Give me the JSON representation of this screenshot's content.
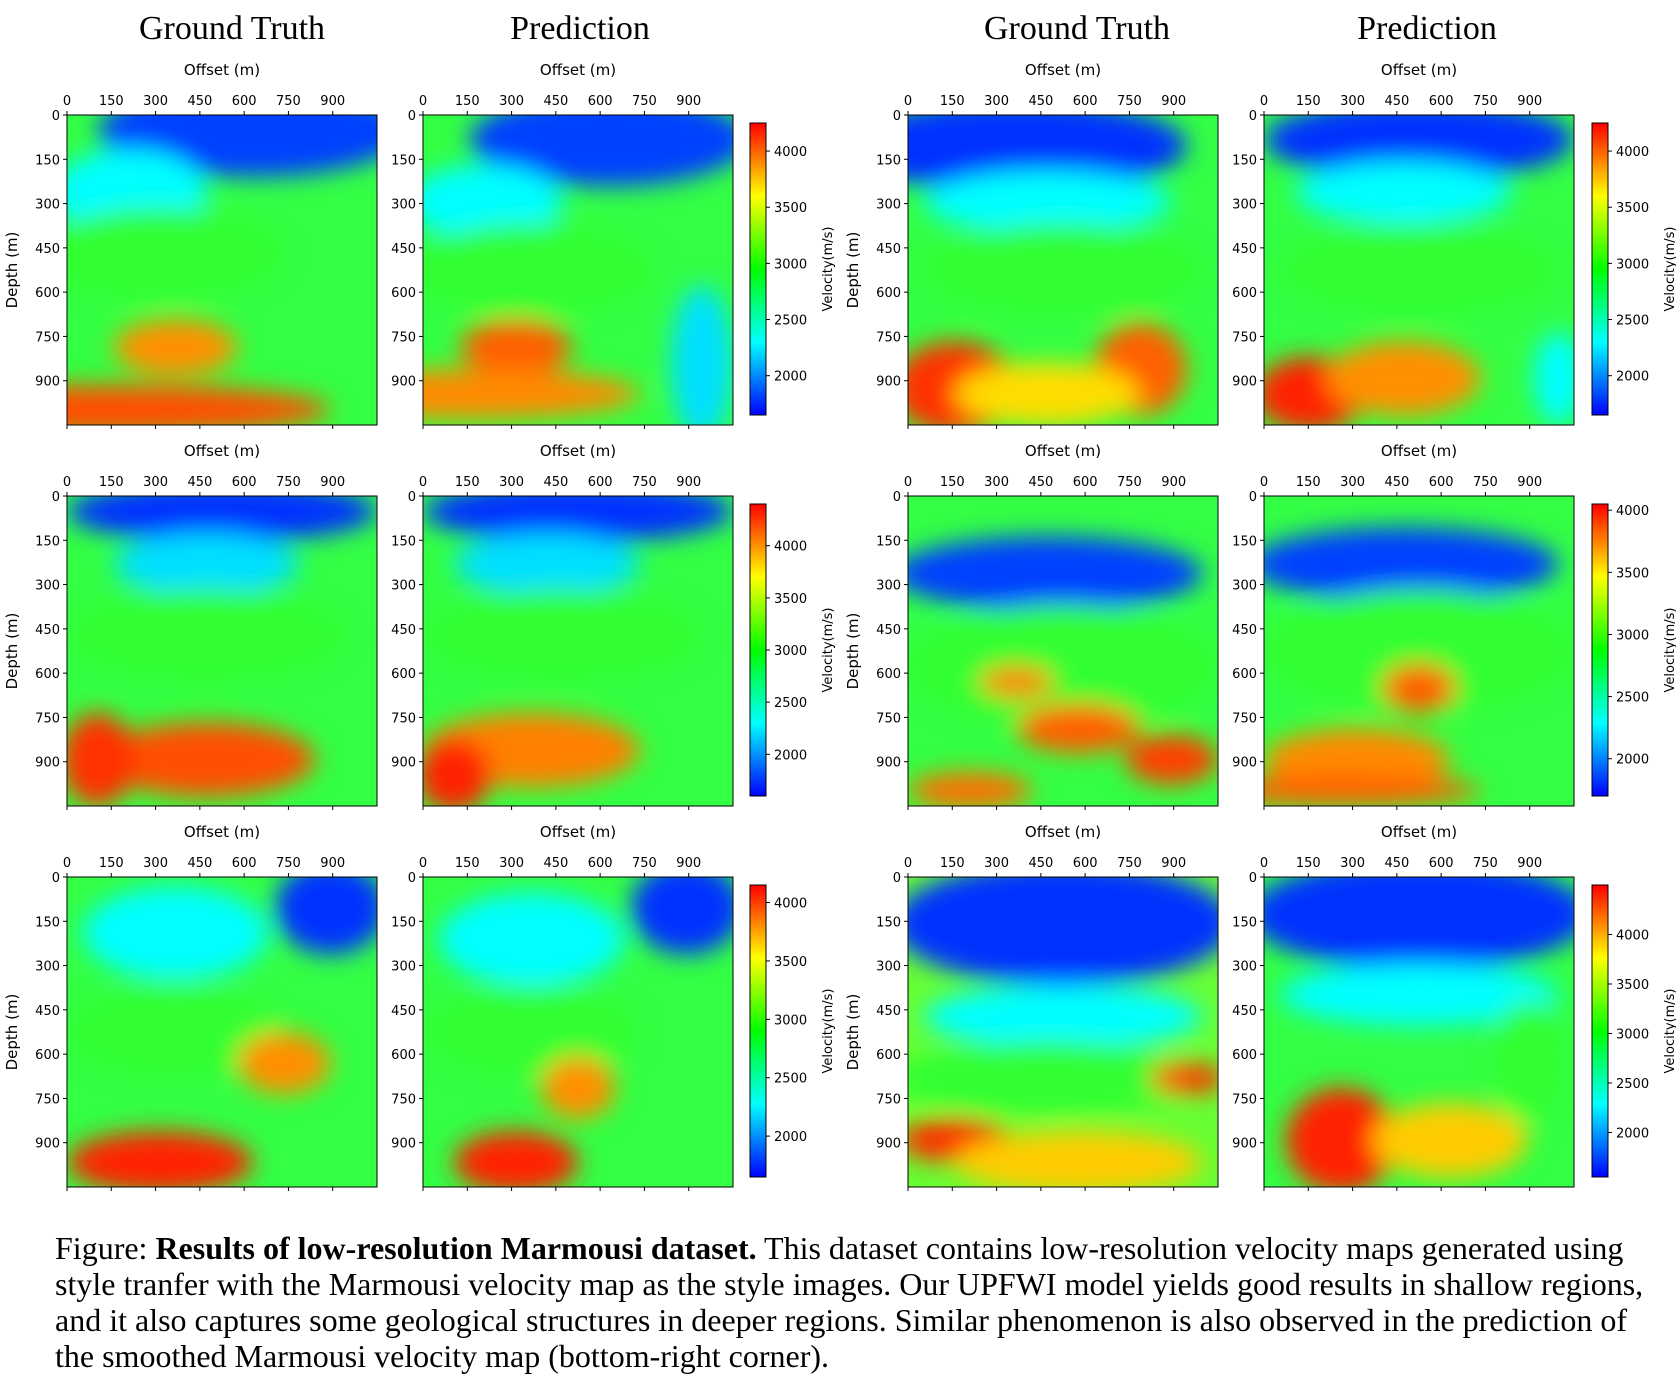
{
  "column_titles": [
    "Ground Truth",
    "Prediction",
    "Ground Truth",
    "Prediction"
  ],
  "caption": {
    "prefix": "Figure: ",
    "bold": "Results of low-resolution Marmousi dataset.",
    "rest": " This dataset contains low-resolution velocity maps generated using style tranfer with the Marmousi velocity map as the style images. Our UPFWI model yields good results in shallow regions, and it also captures some geological structures in deeper regions. Similar phenomenon is also observed in the prediction of the smoothed Marmousi velocity map (bottom-right corner)."
  },
  "chart_data": {
    "type": "heatmap",
    "xlabel": "Offset (m)",
    "ylabel": "Depth (m)",
    "colorbar_label": "Velocity(m/s)",
    "colormap": "jet",
    "x_ticks": [
      0,
      150,
      300,
      450,
      600,
      750,
      900
    ],
    "y_ticks": [
      0,
      150,
      300,
      450,
      600,
      750,
      900
    ],
    "xlim": [
      0,
      1050
    ],
    "ylim": [
      0,
      1050
    ],
    "panels": [
      {
        "row": 1,
        "pair": 1,
        "cbar_range": [
          1650,
          4250
        ],
        "cbar_ticks": [
          2000,
          2500,
          3000,
          3500,
          4000
        ]
      },
      {
        "row": 1,
        "pair": 2,
        "cbar_range": [
          1650,
          4250
        ],
        "cbar_ticks": [
          2000,
          2500,
          3000,
          3500,
          4000
        ]
      },
      {
        "row": 2,
        "pair": 1,
        "cbar_range": [
          1600,
          4400
        ],
        "cbar_ticks": [
          2000,
          2500,
          3000,
          3500,
          4000
        ]
      },
      {
        "row": 2,
        "pair": 2,
        "cbar_range": [
          1700,
          4050
        ],
        "cbar_ticks": [
          2000,
          2500,
          3000,
          3500,
          4000
        ]
      },
      {
        "row": 3,
        "pair": 1,
        "cbar_range": [
          1650,
          4150
        ],
        "cbar_ticks": [
          2000,
          2500,
          3000,
          3500,
          4000
        ]
      },
      {
        "row": 3,
        "pair": 2,
        "cbar_range": [
          1550,
          4500
        ],
        "cbar_ticks": [
          2000,
          2500,
          3000,
          3500,
          4000
        ]
      }
    ]
  },
  "colors": {
    "jet": [
      "#00007f",
      "#0000ff",
      "#007fff",
      "#00ffff",
      "#7fff7f",
      "#ffff00",
      "#ff7f00",
      "#ff0000",
      "#7f0000"
    ],
    "jet_visible": [
      "#0000ff",
      "#00ffff",
      "#00ff00",
      "#ffff00",
      "#ff0000"
    ]
  }
}
